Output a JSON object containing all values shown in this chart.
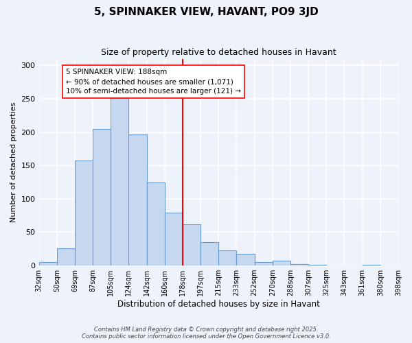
{
  "title": "5, SPINNAKER VIEW, HAVANT, PO9 3JD",
  "subtitle": "Size of property relative to detached houses in Havant",
  "xlabel": "Distribution of detached houses by size in Havant",
  "ylabel": "Number of detached properties",
  "bin_labels": [
    "32sqm",
    "50sqm",
    "69sqm",
    "87sqm",
    "105sqm",
    "124sqm",
    "142sqm",
    "160sqm",
    "178sqm",
    "197sqm",
    "215sqm",
    "233sqm",
    "252sqm",
    "270sqm",
    "288sqm",
    "307sqm",
    "325sqm",
    "343sqm",
    "361sqm",
    "380sqm",
    "398sqm"
  ],
  "bar_values": [
    5,
    26,
    157,
    205,
    251,
    196,
    124,
    79,
    62,
    35,
    23,
    18,
    5,
    7,
    2,
    1,
    0,
    0,
    1,
    0
  ],
  "bar_color": "#c5d8f0",
  "bar_edge_color": "#6699cc",
  "annotation_title": "5 SPINNAKER VIEW: 188sqm",
  "annotation_line1": "← 90% of detached houses are smaller (1,071)",
  "annotation_line2": "10% of semi-detached houses are larger (121) →",
  "footer_line1": "Contains HM Land Registry data © Crown copyright and database right 2025.",
  "footer_line2": "Contains public sector information licensed under the Open Government Licence v3.0.",
  "ylim": [
    0,
    310
  ],
  "yticks": [
    0,
    50,
    100,
    150,
    200,
    250,
    300
  ],
  "bg_color": "#eef2fb",
  "grid_color": "#ffffff",
  "vline_bin_index": 8
}
